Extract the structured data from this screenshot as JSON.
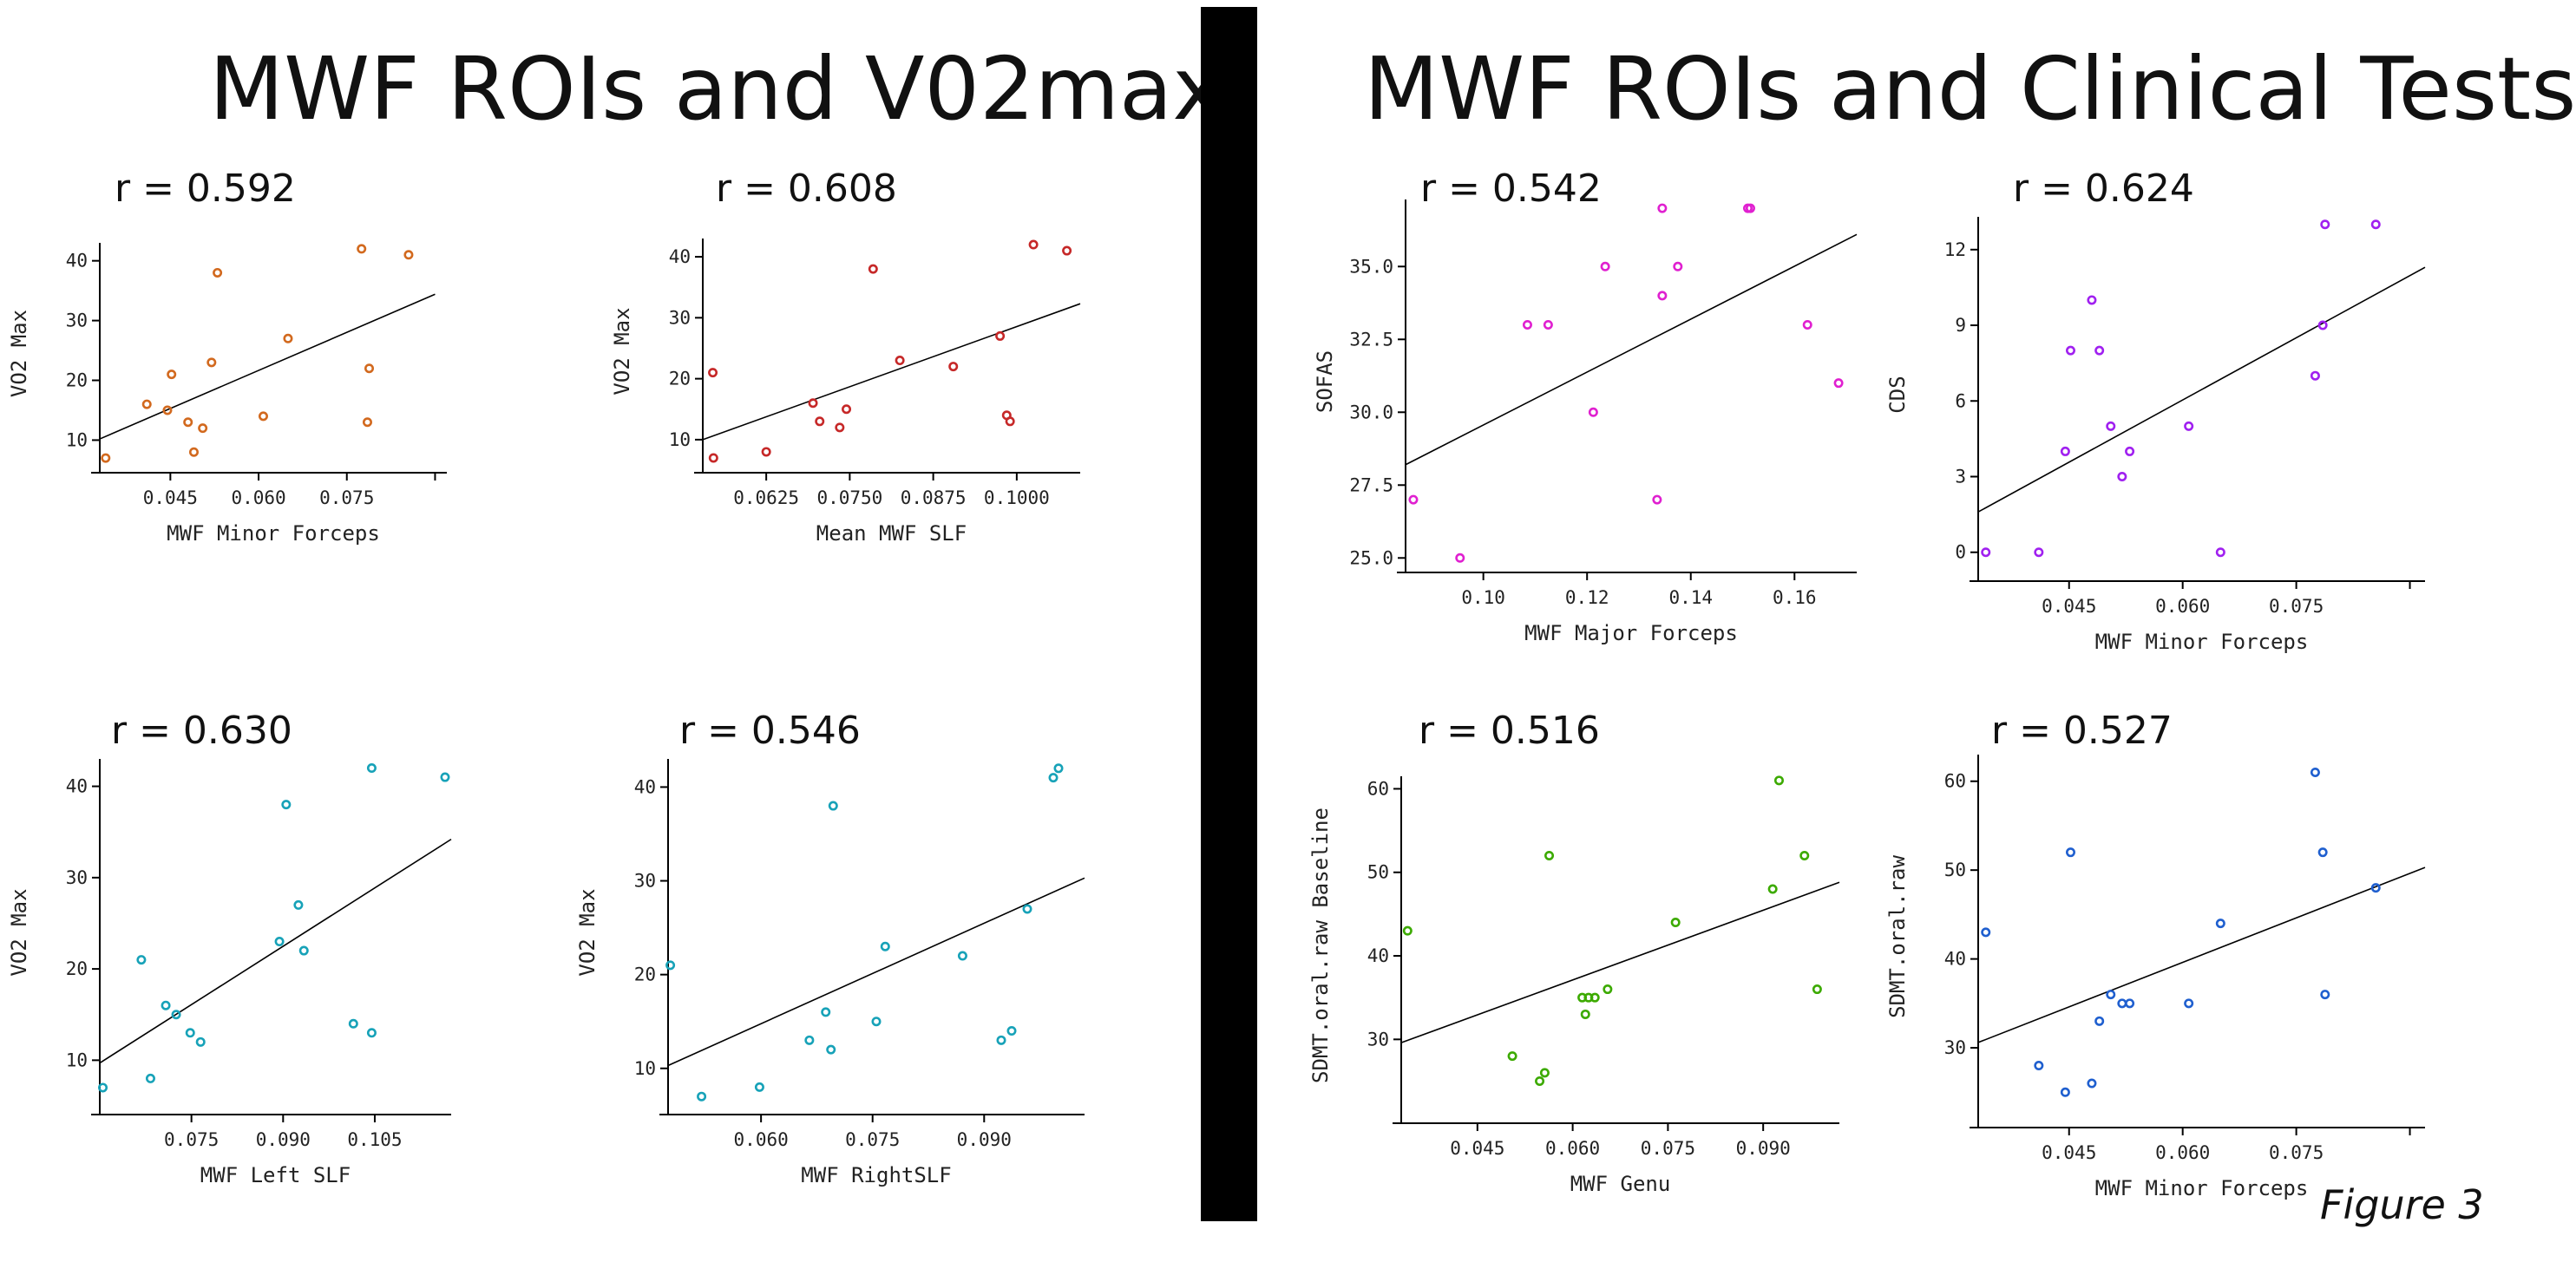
{
  "titles": {
    "left": "MWF ROIs and V02max",
    "right": "MWF ROIs and Clinical Tests",
    "figure": "Figure 3"
  },
  "chart_data": [
    {
      "type": "scatter",
      "title": "r = 0.592",
      "xlabel": "MWF Minor Forceps",
      "ylabel": "VO2 Max",
      "color": "#d2691e",
      "xlim": [
        0.033,
        0.092
      ],
      "ylim": [
        6,
        43
      ],
      "xticks": [
        0.045,
        0.06,
        0.075,
        0.09
      ],
      "xtick_labels": [
        "0.045",
        "0.060",
        "0.075",
        ""
      ],
      "yticks": [
        10,
        20,
        30,
        40
      ],
      "ytick_labels": [
        "10",
        "20",
        "30",
        "40"
      ],
      "x": [
        0.034,
        0.041,
        0.0445,
        0.0452,
        0.048,
        0.049,
        0.0505,
        0.052,
        0.053,
        0.0608,
        0.065,
        0.0775,
        0.0785,
        0.0788,
        0.0855
      ],
      "y": [
        7,
        16,
        15,
        21,
        13,
        8,
        12,
        23,
        38,
        14,
        27,
        42,
        13,
        22,
        41
      ],
      "fit": {
        "x": [
          0.033,
          0.09
        ],
        "y": [
          10.2,
          34.4
        ]
      }
    },
    {
      "type": "scatter",
      "title": "r = 0.608",
      "xlabel": "Mean MWF SLF",
      "ylabel": "VO2 Max",
      "color": "#c62828",
      "xlim": [
        0.053,
        0.1095
      ],
      "ylim": [
        6,
        43
      ],
      "xticks": [
        0.0625,
        0.075,
        0.0875,
        0.1
      ],
      "xtick_labels": [
        "0.0625",
        "0.0750",
        "0.0875",
        "0.1000"
      ],
      "yticks": [
        10,
        20,
        30,
        40
      ],
      "ytick_labels": [
        "10",
        "20",
        "30",
        "40"
      ],
      "x": [
        0.0545,
        0.0546,
        0.0625,
        0.0695,
        0.0705,
        0.0735,
        0.0745,
        0.0785,
        0.0825,
        0.0905,
        0.0975,
        0.0985,
        0.099,
        0.1025,
        0.1075
      ],
      "y": [
        21,
        7,
        8,
        16,
        13,
        12,
        15,
        38,
        23,
        22,
        27,
        14,
        13,
        42,
        41
      ],
      "fit": {
        "x": [
          0.053,
          0.1095
        ],
        "y": [
          10.0,
          32.3
        ]
      }
    },
    {
      "type": "scatter",
      "title": "r = 0.542",
      "xlabel": "MWF Major Forceps",
      "ylabel": "SOFAS",
      "color": "#e020d0",
      "xlim": [
        0.085,
        0.172
      ],
      "ylim": [
        24.8,
        37.3
      ],
      "xticks": [
        0.1,
        0.12,
        0.14,
        0.16
      ],
      "xtick_labels": [
        "0.10",
        "0.12",
        "0.14",
        "0.16"
      ],
      "yticks": [
        25,
        27.5,
        30,
        32.5,
        35
      ],
      "ytick_labels": [
        "25.0",
        "27.5",
        "30.0",
        "32.5",
        "35.0"
      ],
      "x": [
        0.0865,
        0.0955,
        0.1085,
        0.1125,
        0.1212,
        0.1235,
        0.1335,
        0.1345,
        0.1345,
        0.1375,
        0.151,
        0.1515,
        0.1625,
        0.1685
      ],
      "y": [
        27,
        25,
        33,
        33,
        30,
        35,
        27,
        34,
        37,
        35,
        37,
        37,
        33,
        31
      ],
      "fit": {
        "x": [
          0.085,
          0.172
        ],
        "y": [
          28.2,
          36.1
        ]
      }
    },
    {
      "type": "scatter",
      "title": "r = 0.624",
      "xlabel": "MWF Minor Forceps",
      "ylabel": "CDS",
      "color": "#a020f0",
      "xlim": [
        0.033,
        0.092
      ],
      "ylim": [
        -0.8,
        13.3
      ],
      "xticks": [
        0.045,
        0.06,
        0.075,
        0.09
      ],
      "xtick_labels": [
        "0.045",
        "0.060",
        "0.075",
        ""
      ],
      "yticks": [
        0,
        3,
        6,
        9,
        12
      ],
      "ytick_labels": [
        "0",
        "3",
        "6",
        "9",
        "12"
      ],
      "x": [
        0.034,
        0.041,
        0.0445,
        0.0452,
        0.048,
        0.049,
        0.0505,
        0.052,
        0.053,
        0.0608,
        0.065,
        0.0775,
        0.0785,
        0.0788,
        0.0855
      ],
      "y": [
        0,
        0,
        4,
        8,
        10,
        8,
        5,
        3,
        4,
        5,
        0,
        7,
        9,
        13,
        13
      ],
      "fit": {
        "x": [
          0.033,
          0.092
        ],
        "y": [
          1.6,
          11.3
        ]
      }
    },
    {
      "type": "scatter",
      "title": "r = 0.630",
      "xlabel": "MWF Left SLF",
      "ylabel": "VO2 Max",
      "color": "#17a2b8",
      "xlim": [
        0.06,
        0.1175
      ],
      "ylim": [
        5,
        43
      ],
      "xticks": [
        0.075,
        0.09,
        0.105
      ],
      "xtick_labels": [
        "0.075",
        "0.090",
        "0.105"
      ],
      "yticks": [
        10,
        20,
        30,
        40
      ],
      "ytick_labels": [
        "10",
        "20",
        "30",
        "40"
      ],
      "x": [
        0.0605,
        0.0668,
        0.0683,
        0.0708,
        0.0725,
        0.0748,
        0.0765,
        0.0894,
        0.0905,
        0.0925,
        0.0934,
        0.1015,
        0.1045,
        0.1045,
        0.1165
      ],
      "y": [
        7,
        21,
        8,
        16,
        15,
        13,
        12,
        23,
        38,
        27,
        22,
        14,
        13,
        42,
        41
      ],
      "fit": {
        "x": [
          0.06,
          0.1175
        ],
        "y": [
          9.7,
          34.2
        ]
      }
    },
    {
      "type": "scatter",
      "title": "r = 0.546",
      "xlabel": "MWF RightSLF",
      "ylabel": "VO2 Max",
      "color": "#17a2b8",
      "xlim": [
        0.0475,
        0.1035
      ],
      "ylim": [
        6,
        43
      ],
      "xticks": [
        0.06,
        0.075,
        0.09
      ],
      "xtick_labels": [
        "0.060",
        "0.075",
        "0.090"
      ],
      "yticks": [
        10,
        20,
        30,
        40
      ],
      "ytick_labels": [
        "10",
        "20",
        "30",
        "40"
      ],
      "x": [
        0.0478,
        0.052,
        0.0598,
        0.0665,
        0.0687,
        0.0694,
        0.0697,
        0.0755,
        0.0767,
        0.0871,
        0.0923,
        0.0937,
        0.0958,
        0.0993,
        0.1
      ],
      "y": [
        21,
        7,
        8,
        13,
        16,
        12,
        38,
        15,
        23,
        22,
        13,
        14,
        27,
        41,
        42
      ],
      "fit": {
        "x": [
          0.0475,
          0.1035
        ],
        "y": [
          10.3,
          30.3
        ]
      }
    },
    {
      "type": "scatter",
      "title": "r = 0.516",
      "xlabel": "MWF Genu",
      "ylabel": "SDMT.oral.raw Baseline",
      "color": "#3caa00",
      "xlim": [
        0.033,
        0.102
      ],
      "ylim": [
        21,
        61.5
      ],
      "xticks": [
        0.045,
        0.06,
        0.075,
        0.09
      ],
      "xtick_labels": [
        "0.045",
        "0.060",
        "0.075",
        "0.090"
      ],
      "yticks": [
        30,
        40,
        50,
        60
      ],
      "ytick_labels": [
        "30",
        "40",
        "50",
        "60"
      ],
      "x": [
        0.034,
        0.0505,
        0.0548,
        0.0556,
        0.0563,
        0.0615,
        0.062,
        0.0625,
        0.0635,
        0.0655,
        0.0762,
        0.0915,
        0.0925,
        0.0965,
        0.0985
      ],
      "y": [
        43,
        28,
        25,
        26,
        52,
        35,
        33,
        35,
        35,
        36,
        44,
        48,
        61,
        52,
        36
      ],
      "fit": {
        "x": [
          0.033,
          0.102
        ],
        "y": [
          29.6,
          48.8
        ]
      }
    },
    {
      "type": "scatter",
      "title": "r = 0.527",
      "xlabel": "MWF Minor Forceps",
      "ylabel": "SDMT.oral.raw",
      "color": "#1f5fcf",
      "xlim": [
        0.033,
        0.092
      ],
      "ylim": [
        22,
        63
      ],
      "xticks": [
        0.045,
        0.06,
        0.075,
        0.09
      ],
      "xtick_labels": [
        "0.045",
        "0.060",
        "0.075",
        ""
      ],
      "yticks": [
        30,
        40,
        50,
        60
      ],
      "ytick_labels": [
        "30",
        "40",
        "50",
        "60"
      ],
      "x": [
        0.034,
        0.041,
        0.0445,
        0.0452,
        0.048,
        0.049,
        0.0505,
        0.052,
        0.053,
        0.0608,
        0.065,
        0.0775,
        0.0785,
        0.0788,
        0.0855
      ],
      "y": [
        43,
        28,
        25,
        52,
        26,
        33,
        36,
        35,
        35,
        35,
        44,
        61,
        52,
        36,
        48
      ],
      "fit": {
        "x": [
          0.033,
          0.092
        ],
        "y": [
          30.6,
          50.3
        ]
      }
    }
  ]
}
